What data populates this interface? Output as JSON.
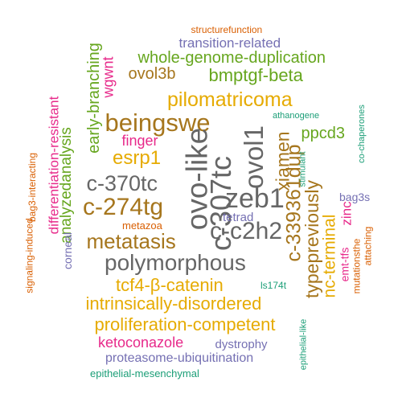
{
  "palette": {
    "teal": "#1b9e77",
    "orange": "#d95f02",
    "purple": "#7570b3",
    "magenta": "#e7298a",
    "green": "#66a61e",
    "gold": "#e6ab02",
    "brown": "#a6761d",
    "gray": "#666666"
  },
  "words": [
    {
      "text": "structurefunction",
      "color": "orange"
    },
    {
      "text": "transition-related",
      "color": "purple"
    },
    {
      "text": "whole-genome-duplication",
      "color": "green"
    },
    {
      "text": "ovol3b",
      "color": "brown"
    },
    {
      "text": "bmptgf-beta",
      "color": "green"
    },
    {
      "text": "wgwnt",
      "color": "magenta"
    },
    {
      "text": "early-branching",
      "color": "green"
    },
    {
      "text": "pilomatricoma",
      "color": "gold"
    },
    {
      "text": "beingswe",
      "color": "brown"
    },
    {
      "text": "athanogene",
      "color": "teal"
    },
    {
      "text": "co-chaperones",
      "color": "teal"
    },
    {
      "text": "ppcd3",
      "color": "green"
    },
    {
      "text": "finger",
      "color": "magenta"
    },
    {
      "text": "esrp1",
      "color": "gold"
    },
    {
      "text": "ovo-like",
      "color": "gray"
    },
    {
      "text": "ovol1",
      "color": "gray"
    },
    {
      "text": "xiamen",
      "color": "brown"
    },
    {
      "text": "c-339361dup",
      "color": "brown"
    },
    {
      "text": "differentiation-resistant",
      "color": "magenta"
    },
    {
      "text": "bag3-interacting",
      "color": "orange"
    },
    {
      "text": "analyzedanalysis",
      "color": "green"
    },
    {
      "text": "c-370tc",
      "color": "gray"
    },
    {
      "text": "c-307tc",
      "color": "gray"
    },
    {
      "text": "zeb1",
      "color": "gray"
    },
    {
      "text": "typepreviously",
      "color": "brown"
    },
    {
      "text": "stimulant",
      "color": "teal"
    },
    {
      "text": "bag3s",
      "color": "purple"
    },
    {
      "text": "c-274tg",
      "color": "brown"
    },
    {
      "text": "c-c2h2",
      "color": "gray"
    },
    {
      "text": "zinc",
      "color": "magenta"
    },
    {
      "text": "metazoa",
      "color": "orange"
    },
    {
      "text": "tetrad",
      "color": "purple"
    },
    {
      "text": "signaling-induced",
      "color": "orange"
    },
    {
      "text": "corneal",
      "color": "purple"
    },
    {
      "text": "metatasis",
      "color": "brown"
    },
    {
      "text": "nc-terminal",
      "color": "gold"
    },
    {
      "text": "mutationsthe",
      "color": "orange"
    },
    {
      "text": "attaching",
      "color": "orange"
    },
    {
      "text": "emt-tfs",
      "color": "magenta"
    },
    {
      "text": "polymorphous",
      "color": "gray"
    },
    {
      "text": "tcf4-β-catenin",
      "color": "gold"
    },
    {
      "text": "ls174t",
      "color": "teal"
    },
    {
      "text": "intrinsically-disordered",
      "color": "gold"
    },
    {
      "text": "proliferation-competent",
      "color": "gold"
    },
    {
      "text": "epithelial-like",
      "color": "teal"
    },
    {
      "text": "ketoconazole",
      "color": "magenta"
    },
    {
      "text": "dystrophy",
      "color": "purple"
    },
    {
      "text": "proteasome-ubiquitination",
      "color": "purple"
    },
    {
      "text": "epithelial-mesenchymal",
      "color": "teal"
    }
  ]
}
